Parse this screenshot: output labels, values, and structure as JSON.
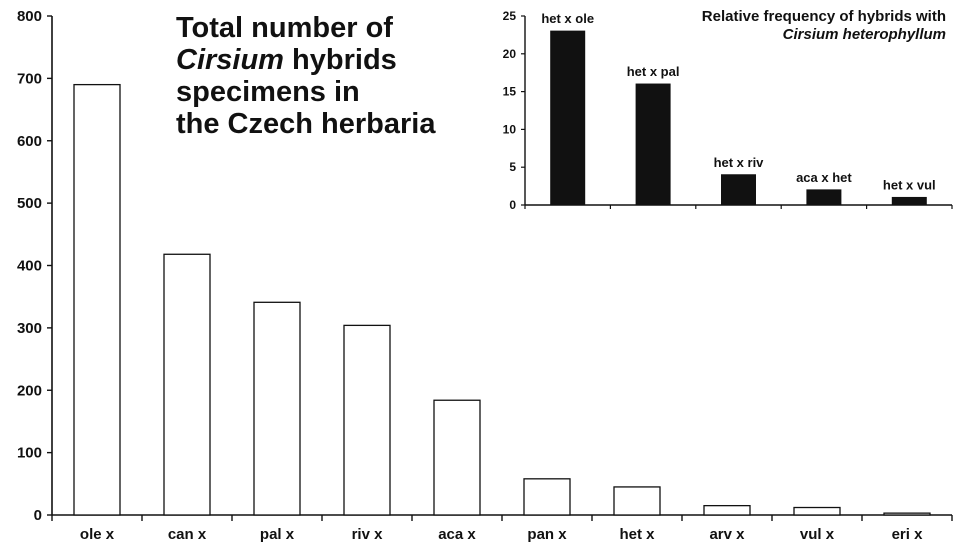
{
  "chart_data": [
    {
      "type": "bar",
      "title_lines": [
        "Total number of",
        "Cirsium hybrids",
        "specimens in",
        "the Czech herbaria"
      ],
      "title_italic_word": "Cirsium",
      "categories": [
        "ole x",
        "can x",
        "pal x",
        "riv x",
        "aca x",
        "pan x",
        "het x",
        "arv x",
        "vul x",
        "eri x"
      ],
      "values": [
        690,
        418,
        341,
        304,
        184,
        58,
        45,
        15,
        12,
        3
      ],
      "yticks": [
        "0",
        "100",
        "200",
        "300",
        "400",
        "500",
        "600",
        "700",
        "800"
      ],
      "ylim": [
        0,
        800
      ],
      "bar_color": "#ffffff",
      "grid": false,
      "legend": "none"
    },
    {
      "type": "bar",
      "title_lines": [
        "Relative frequency of hybrids with",
        "Cirsium heterophyllum"
      ],
      "title_italic_line": 1,
      "bar_labels": [
        "het x ole",
        "het x pal",
        "het x riv",
        "aca x het",
        "het x vul"
      ],
      "values": [
        23,
        16,
        4,
        2,
        1
      ],
      "yticks": [
        "0",
        "5",
        "10",
        "15",
        "20",
        "25"
      ],
      "ylim": [
        0,
        25
      ],
      "bar_color": "#111111",
      "grid": false,
      "legend": "none"
    }
  ]
}
